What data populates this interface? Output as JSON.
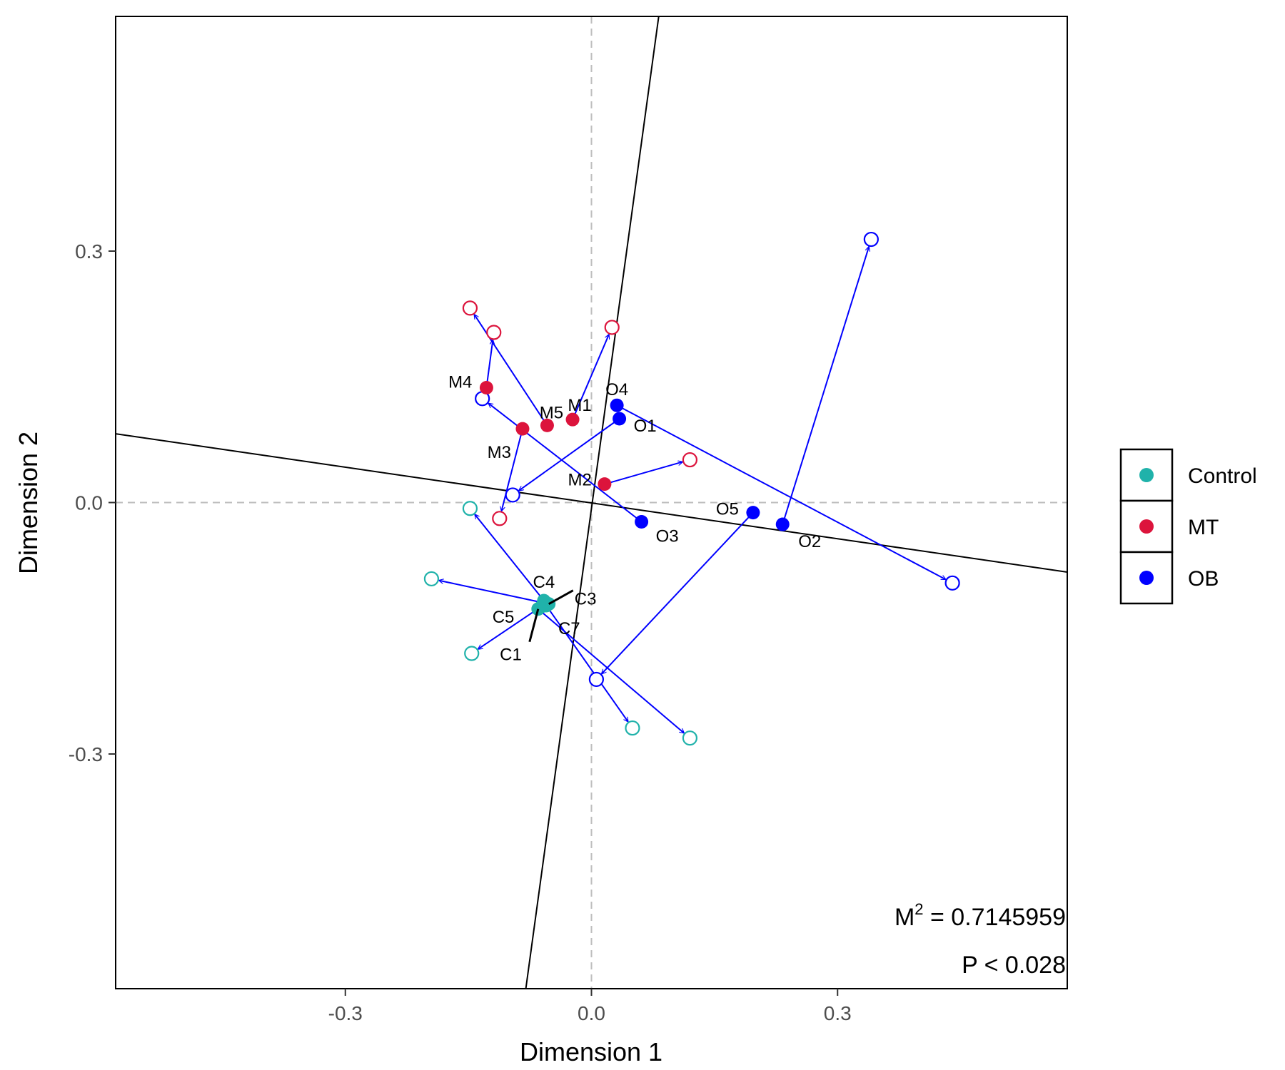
{
  "chart_data": {
    "type": "scatter",
    "title": "",
    "xlabel": "Dimension 1",
    "ylabel": "Dimension 2",
    "xlim": [
      -0.58,
      0.58
    ],
    "ylim": [
      -0.58,
      0.58
    ],
    "xticks": [
      -0.3,
      0.0,
      0.3
    ],
    "yticks": [
      -0.3,
      0.0,
      0.3
    ],
    "xtick_labels": [
      "-0.3",
      "0.0",
      "0.3"
    ],
    "ytick_labels": [
      "-0.3",
      "0.0",
      "0.3"
    ],
    "grid": false,
    "reference_lines": {
      "x": 0.0,
      "y": 0.0,
      "style": "dashed"
    },
    "rotated_axes": [
      {
        "x1": -0.08,
        "y1": -0.58,
        "x2": 0.082,
        "y2": 0.58
      },
      {
        "x1": -0.58,
        "y1": 0.082,
        "x2": 0.58,
        "y2": -0.083
      }
    ],
    "legend": {
      "position": "right",
      "entries": [
        {
          "label": "Control",
          "color": "#20B2AA"
        },
        {
          "label": "MT",
          "color": "#DC143C"
        },
        {
          "label": "OB",
          "color": "#0000FF"
        }
      ]
    },
    "colors": {
      "Control": "#20B2AA",
      "MT": "#DC143C",
      "OB": "#0000FF",
      "arrow": "#0000FF"
    },
    "series": [
      {
        "name": "Control",
        "points": [
          {
            "label": "C1",
            "x": -0.065,
            "y": -0.127,
            "tx": 0.12,
            "ty": -0.281
          },
          {
            "label": "C3",
            "x": -0.052,
            "y": -0.121,
            "tx": -0.195,
            "ty": -0.091
          },
          {
            "label": "C4",
            "x": -0.058,
            "y": -0.117,
            "tx": -0.148,
            "ty": -0.007
          },
          {
            "label": "C5",
            "x": -0.061,
            "y": -0.124,
            "tx": -0.146,
            "ty": -0.18
          },
          {
            "label": "C7",
            "x": -0.055,
            "y": -0.123,
            "tx": 0.05,
            "ty": -0.269
          }
        ]
      },
      {
        "name": "MT",
        "points": [
          {
            "label": "M1",
            "x": -0.023,
            "y": 0.099,
            "tx": 0.025,
            "ty": 0.209
          },
          {
            "label": "M2",
            "x": 0.016,
            "y": 0.022,
            "tx": 0.12,
            "ty": 0.051
          },
          {
            "label": "M3",
            "x": -0.084,
            "y": 0.088,
            "tx": -0.112,
            "ty": -0.019
          },
          {
            "label": "M4",
            "x": -0.128,
            "y": 0.137,
            "tx": -0.119,
            "ty": 0.203
          },
          {
            "label": "M5",
            "x": -0.054,
            "y": 0.092,
            "tx": -0.148,
            "ty": 0.232
          }
        ]
      },
      {
        "name": "OB",
        "points": [
          {
            "label": "O1",
            "x": 0.034,
            "y": 0.1,
            "tx": -0.096,
            "ty": 0.009
          },
          {
            "label": "O2",
            "x": 0.233,
            "y": -0.026,
            "tx": 0.341,
            "ty": 0.314
          },
          {
            "label": "O3",
            "x": 0.061,
            "y": -0.023,
            "tx": -0.133,
            "ty": 0.124
          },
          {
            "label": "O4",
            "x": 0.031,
            "y": 0.116,
            "tx": 0.44,
            "ty": -0.096
          },
          {
            "label": "O5",
            "x": 0.197,
            "y": -0.012,
            "tx": 0.006,
            "ty": -0.211
          }
        ]
      }
    ],
    "annotations": [
      {
        "text": "M",
        "superscript": "2",
        "rest": " = 0.7145959"
      },
      {
        "text": "P < 0.028"
      }
    ]
  }
}
